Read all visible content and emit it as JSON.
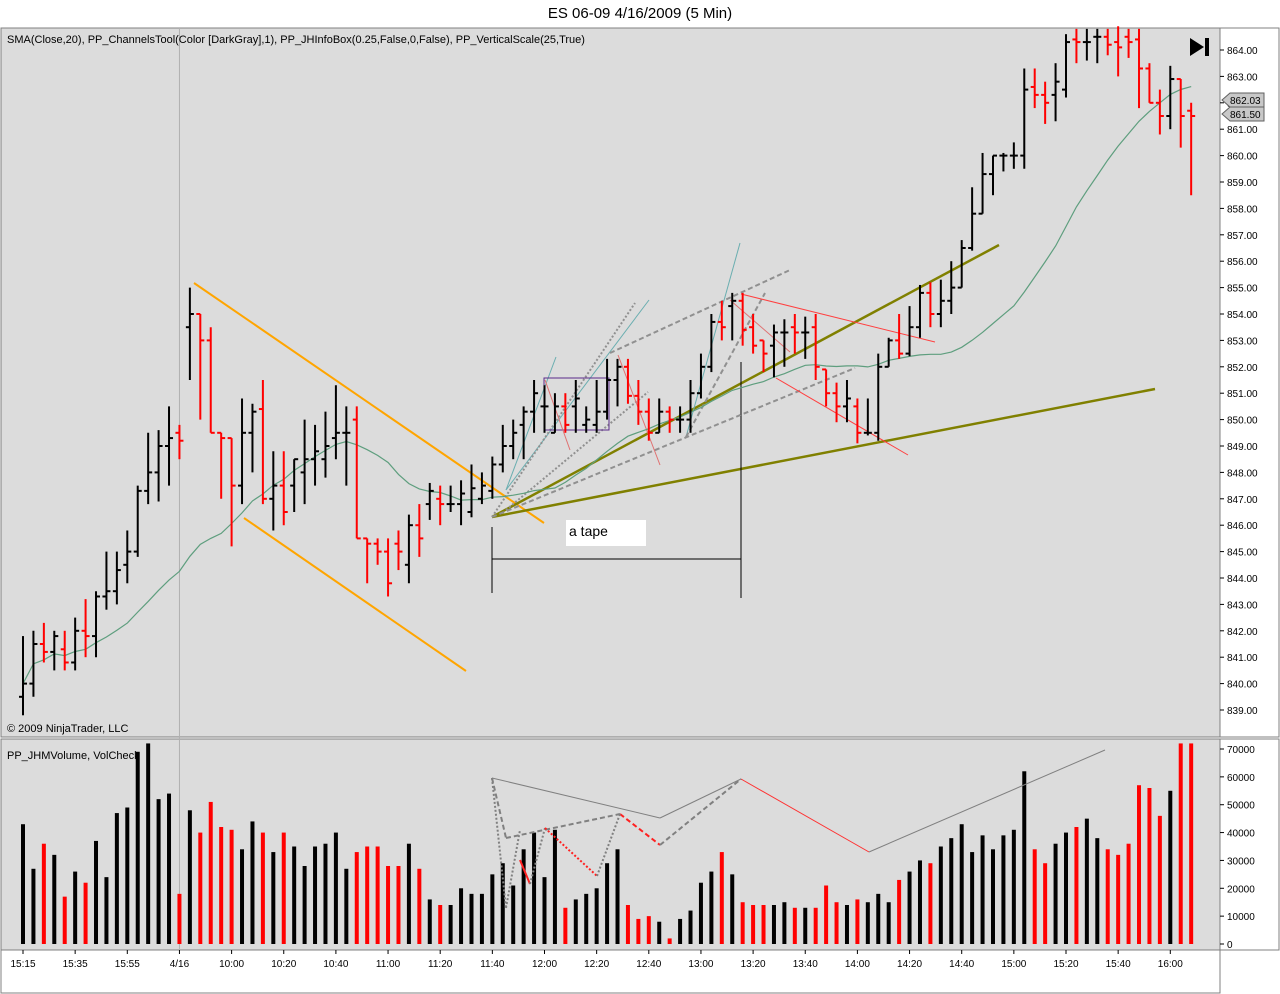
{
  "title": "ES 06-09  4/16/2009 (5 Min)",
  "price_panel": {
    "indicator_label": "SMA(Close,20), PP_ChannelsTool(Color [DarkGray],1), PP_JHInfoBox(0.25,False,0,False), PP_VerticalScale(25,True)",
    "copyright": "© 2009 NinjaTrader, LLC",
    "annotation": "a tape",
    "price_markers": [
      "862.03",
      "861.50"
    ]
  },
  "volume_panel": {
    "indicator_label": "PP_JHMVolume, VolCheck"
  },
  "colors": {
    "up": "#000000",
    "down": "#ff0000",
    "sma": "#5e9e7e",
    "channel_orange": "#ffa500",
    "olive": "#808000"
  },
  "chart_data": {
    "type": "bar",
    "subtype": "ohlc",
    "x_tick_labels": [
      "15:15",
      "15:35",
      "15:55",
      "4/16",
      "10:00",
      "10:20",
      "10:40",
      "11:00",
      "11:20",
      "11:40",
      "12:00",
      "12:20",
      "12:40",
      "13:00",
      "13:20",
      "13:40",
      "14:00",
      "14:20",
      "14:40",
      "15:00",
      "15:20",
      "15:40",
      "16:00"
    ],
    "price_ticks": [
      "839.00",
      "840.00",
      "841.00",
      "842.00",
      "843.00",
      "844.00",
      "845.00",
      "846.00",
      "847.00",
      "848.00",
      "849.00",
      "850.00",
      "851.00",
      "852.00",
      "853.00",
      "854.00",
      "855.00",
      "856.00",
      "857.00",
      "858.00",
      "859.00",
      "860.00",
      "861.00",
      "862.00",
      "863.00",
      "864.00"
    ],
    "volume_ticks": [
      "0",
      "10000",
      "20000",
      "30000",
      "40000",
      "50000",
      "60000",
      "70000"
    ],
    "ylim_price": [
      838.25,
      864.8
    ],
    "ylim_volume": [
      0,
      72000
    ],
    "bars": [
      {
        "o": 839.5,
        "h": 841.8,
        "l": 838.8,
        "c": 840.0,
        "v": 43000
      },
      {
        "o": 840.0,
        "h": 842.0,
        "l": 839.5,
        "c": 841.5,
        "v": 27000
      },
      {
        "o": 841.5,
        "h": 842.3,
        "l": 840.8,
        "c": 841.2,
        "v": 36000
      },
      {
        "o": 841.2,
        "h": 842.0,
        "l": 840.5,
        "c": 841.8,
        "v": 32000
      },
      {
        "o": 841.3,
        "h": 842.0,
        "l": 840.5,
        "c": 840.8,
        "v": 17000
      },
      {
        "o": 840.8,
        "h": 842.5,
        "l": 840.5,
        "c": 842.0,
        "v": 26000
      },
      {
        "o": 842.0,
        "h": 843.2,
        "l": 841.0,
        "c": 841.8,
        "v": 22000
      },
      {
        "o": 841.8,
        "h": 843.5,
        "l": 841.0,
        "c": 843.3,
        "v": 37000
      },
      {
        "o": 843.3,
        "h": 845.0,
        "l": 842.8,
        "c": 843.5,
        "v": 24000
      },
      {
        "o": 843.5,
        "h": 845.0,
        "l": 843.0,
        "c": 844.3,
        "v": 47000
      },
      {
        "o": 844.5,
        "h": 845.8,
        "l": 843.8,
        "c": 845.0,
        "v": 49000
      },
      {
        "o": 845.0,
        "h": 847.5,
        "l": 844.8,
        "c": 847.3,
        "v": 69000
      },
      {
        "o": 847.3,
        "h": 849.5,
        "l": 846.8,
        "c": 848.0,
        "v": 72000
      },
      {
        "o": 848.0,
        "h": 849.6,
        "l": 846.9,
        "c": 849.0,
        "v": 52000
      },
      {
        "o": 849.0,
        "h": 850.5,
        "l": 847.5,
        "c": 849.3,
        "v": 54000
      },
      {
        "o": 849.5,
        "h": 849.8,
        "l": 848.5,
        "c": 849.2,
        "v": 18000
      },
      {
        "o": 853.5,
        "h": 855.0,
        "l": 851.5,
        "c": 854.0,
        "v": 48000
      },
      {
        "o": 854.0,
        "h": 853.0,
        "l": 850.0,
        "c": 853.0,
        "v": 40000
      },
      {
        "o": 853.0,
        "h": 853.5,
        "l": 849.5,
        "c": 849.5,
        "v": 51000
      },
      {
        "o": 849.5,
        "h": 849.5,
        "l": 847.0,
        "c": 849.3,
        "v": 42000
      },
      {
        "o": 849.3,
        "h": 849.3,
        "l": 845.2,
        "c": 847.5,
        "v": 41000
      },
      {
        "o": 847.5,
        "h": 850.8,
        "l": 846.8,
        "c": 849.5,
        "v": 34000
      },
      {
        "o": 849.5,
        "h": 850.6,
        "l": 848.0,
        "c": 850.3,
        "v": 44000
      },
      {
        "o": 850.4,
        "h": 851.5,
        "l": 846.8,
        "c": 847.0,
        "v": 40000
      },
      {
        "o": 847.0,
        "h": 848.8,
        "l": 845.8,
        "c": 847.5,
        "v": 33000
      },
      {
        "o": 847.5,
        "h": 848.8,
        "l": 846.0,
        "c": 846.5,
        "v": 40000
      },
      {
        "o": 847.5,
        "h": 848.5,
        "l": 846.5,
        "c": 848.5,
        "v": 35000
      },
      {
        "o": 848.0,
        "h": 850.0,
        "l": 846.8,
        "c": 848.5,
        "v": 28000
      },
      {
        "o": 848.5,
        "h": 849.8,
        "l": 847.5,
        "c": 848.8,
        "v": 35000
      },
      {
        "o": 848.5,
        "h": 850.3,
        "l": 847.8,
        "c": 849.0,
        "v": 36000
      },
      {
        "o": 849.3,
        "h": 851.3,
        "l": 848.5,
        "c": 849.5,
        "v": 40000
      },
      {
        "o": 849.5,
        "h": 850.5,
        "l": 847.5,
        "c": 849.5,
        "v": 27000
      },
      {
        "o": 850.0,
        "h": 850.5,
        "l": 845.8,
        "c": 845.5,
        "v": 33000
      },
      {
        "o": 845.5,
        "h": 845.5,
        "l": 843.8,
        "c": 845.3,
        "v": 35000
      },
      {
        "o": 845.3,
        "h": 845.5,
        "l": 844.5,
        "c": 845.0,
        "v": 35000
      },
      {
        "o": 845.0,
        "h": 845.5,
        "l": 843.3,
        "c": 843.8,
        "v": 28000
      },
      {
        "o": 845.3,
        "h": 845.8,
        "l": 844.3,
        "c": 845.0,
        "v": 28000
      },
      {
        "o": 844.5,
        "h": 846.4,
        "l": 843.8,
        "c": 846.0,
        "v": 36000
      },
      {
        "o": 846.0,
        "h": 846.8,
        "l": 844.8,
        "c": 845.5,
        "v": 27000
      },
      {
        "o": 846.8,
        "h": 847.6,
        "l": 846.2,
        "c": 847.3,
        "v": 16000
      },
      {
        "o": 847.0,
        "h": 847.5,
        "l": 846.0,
        "c": 846.8,
        "v": 14000
      },
      {
        "o": 846.8,
        "h": 847.5,
        "l": 846.5,
        "c": 846.8,
        "v": 14000
      },
      {
        "o": 846.8,
        "h": 847.7,
        "l": 846.0,
        "c": 847.2,
        "v": 20000
      },
      {
        "o": 846.5,
        "h": 848.3,
        "l": 846.3,
        "c": 847.4,
        "v": 18000
      },
      {
        "o": 847.0,
        "h": 848.0,
        "l": 846.8,
        "c": 847.5,
        "v": 18000
      },
      {
        "o": 847.3,
        "h": 848.6,
        "l": 847.0,
        "c": 848.3,
        "v": 25000
      },
      {
        "o": 848.3,
        "h": 849.8,
        "l": 848.0,
        "c": 849.0,
        "v": 29000
      },
      {
        "o": 849.0,
        "h": 850.0,
        "l": 848.5,
        "c": 849.5,
        "v": 21000
      },
      {
        "o": 849.8,
        "h": 850.5,
        "l": 848.5,
        "c": 850.3,
        "v": 34000
      },
      {
        "o": 850.3,
        "h": 851.5,
        "l": 849.5,
        "c": 851.0,
        "v": 40000
      },
      {
        "o": 850.5,
        "h": 851.3,
        "l": 849.5,
        "c": 850.5,
        "v": 24000
      },
      {
        "o": 849.5,
        "h": 851.0,
        "l": 849.5,
        "c": 850.5,
        "v": 41000
      },
      {
        "o": 850.5,
        "h": 851.0,
        "l": 849.5,
        "c": 849.8,
        "v": 13000
      },
      {
        "o": 850.5,
        "h": 851.5,
        "l": 849.5,
        "c": 850.8,
        "v": 16000
      },
      {
        "o": 849.8,
        "h": 850.5,
        "l": 849.5,
        "c": 850.0,
        "v": 18000
      },
      {
        "o": 849.8,
        "h": 851.5,
        "l": 849.5,
        "c": 850.3,
        "v": 20000
      },
      {
        "o": 850.3,
        "h": 852.3,
        "l": 850.0,
        "c": 851.5,
        "v": 29000
      },
      {
        "o": 851.5,
        "h": 852.3,
        "l": 850.5,
        "c": 852.0,
        "v": 34000
      },
      {
        "o": 852.0,
        "h": 852.3,
        "l": 850.6,
        "c": 850.9,
        "v": 14000
      },
      {
        "o": 850.9,
        "h": 851.5,
        "l": 849.8,
        "c": 850.3,
        "v": 9000
      },
      {
        "o": 850.3,
        "h": 850.8,
        "l": 849.2,
        "c": 849.5,
        "v": 10000
      },
      {
        "o": 849.5,
        "h": 850.8,
        "l": 849.5,
        "c": 850.3,
        "v": 8000
      },
      {
        "o": 850.3,
        "h": 850.5,
        "l": 849.5,
        "c": 850.0,
        "v": 2000
      },
      {
        "o": 850.0,
        "h": 850.5,
        "l": 849.5,
        "c": 850.0,
        "v": 9000
      },
      {
        "o": 850.0,
        "h": 851.5,
        "l": 849.5,
        "c": 851.0,
        "v": 12000
      },
      {
        "o": 851.0,
        "h": 852.5,
        "l": 850.8,
        "c": 852.0,
        "v": 22000
      },
      {
        "o": 852.0,
        "h": 854.0,
        "l": 851.8,
        "c": 853.7,
        "v": 26000
      },
      {
        "o": 853.7,
        "h": 854.5,
        "l": 853.0,
        "c": 853.5,
        "v": 33000
      },
      {
        "o": 854.3,
        "h": 854.8,
        "l": 853.0,
        "c": 854.5,
        "v": 25000
      },
      {
        "o": 854.5,
        "h": 854.8,
        "l": 852.8,
        "c": 853.4,
        "v": 15000
      },
      {
        "o": 853.5,
        "h": 854.0,
        "l": 852.5,
        "c": 852.8,
        "v": 14000
      },
      {
        "o": 853.0,
        "h": 853.0,
        "l": 851.8,
        "c": 852.5,
        "v": 14000
      },
      {
        "o": 852.8,
        "h": 853.6,
        "l": 851.6,
        "c": 853.3,
        "v": 14000
      },
      {
        "o": 853.3,
        "h": 853.8,
        "l": 852.0,
        "c": 853.3,
        "v": 15000
      },
      {
        "o": 853.5,
        "h": 854.0,
        "l": 852.5,
        "c": 853.3,
        "v": 13000
      },
      {
        "o": 853.3,
        "h": 853.9,
        "l": 852.3,
        "c": 853.3,
        "v": 13000
      },
      {
        "o": 853.5,
        "h": 854.0,
        "l": 851.5,
        "c": 852.0,
        "v": 13000
      },
      {
        "o": 851.9,
        "h": 851.8,
        "l": 850.5,
        "c": 851.0,
        "v": 21000
      },
      {
        "o": 851.0,
        "h": 851.4,
        "l": 849.9,
        "c": 850.5,
        "v": 15000
      },
      {
        "o": 850.5,
        "h": 851.5,
        "l": 849.9,
        "c": 850.8,
        "v": 14000
      },
      {
        "o": 850.5,
        "h": 850.8,
        "l": 849.1,
        "c": 849.5,
        "v": 16000
      },
      {
        "o": 849.5,
        "h": 850.8,
        "l": 849.4,
        "c": 849.5,
        "v": 15000
      },
      {
        "o": 849.5,
        "h": 852.5,
        "l": 849.2,
        "c": 852.0,
        "v": 18000
      },
      {
        "o": 852.0,
        "h": 853.1,
        "l": 852.0,
        "c": 853.0,
        "v": 15000
      },
      {
        "o": 853.0,
        "h": 854.0,
        "l": 852.3,
        "c": 852.5,
        "v": 23000
      },
      {
        "o": 852.5,
        "h": 854.3,
        "l": 852.4,
        "c": 853.5,
        "v": 26000
      },
      {
        "o": 853.5,
        "h": 855.1,
        "l": 853.1,
        "c": 854.8,
        "v": 30000
      },
      {
        "o": 854.8,
        "h": 855.2,
        "l": 853.5,
        "c": 854.0,
        "v": 29000
      },
      {
        "o": 854.0,
        "h": 855.3,
        "l": 853.5,
        "c": 854.5,
        "v": 35000
      },
      {
        "o": 854.5,
        "h": 856.0,
        "l": 854.0,
        "c": 855.0,
        "v": 38000
      },
      {
        "o": 855.0,
        "h": 856.8,
        "l": 855.5,
        "c": 856.5,
        "v": 43000
      },
      {
        "o": 856.5,
        "h": 858.8,
        "l": 856.4,
        "c": 857.8,
        "v": 33000
      },
      {
        "o": 857.8,
        "h": 860.1,
        "l": 857.9,
        "c": 859.3,
        "v": 39000
      },
      {
        "o": 859.3,
        "h": 860.0,
        "l": 858.5,
        "c": 860.0,
        "v": 34000
      },
      {
        "o": 860.0,
        "h": 860.1,
        "l": 859.4,
        "c": 860.0,
        "v": 39000
      },
      {
        "o": 860.0,
        "h": 860.5,
        "l": 859.5,
        "c": 860.0,
        "v": 41000
      },
      {
        "o": 860.0,
        "h": 863.3,
        "l": 859.5,
        "c": 862.5,
        "v": 62000
      },
      {
        "o": 862.6,
        "h": 863.3,
        "l": 861.8,
        "c": 862.3,
        "v": 34000
      },
      {
        "o": 862.3,
        "h": 862.8,
        "l": 861.2,
        "c": 862.0,
        "v": 29000
      },
      {
        "o": 862.3,
        "h": 863.5,
        "l": 861.3,
        "c": 862.8,
        "v": 36000
      },
      {
        "o": 862.5,
        "h": 864.6,
        "l": 862.2,
        "c": 864.3,
        "v": 40000
      },
      {
        "o": 864.4,
        "h": 864.8,
        "l": 863.5,
        "c": 864.3,
        "v": 42000
      },
      {
        "o": 864.3,
        "h": 864.8,
        "l": 863.6,
        "c": 864.3,
        "v": 45000
      },
      {
        "o": 864.5,
        "h": 864.8,
        "l": 863.5,
        "c": 864.5,
        "v": 38000
      },
      {
        "o": 864.5,
        "h": 864.8,
        "l": 863.8,
        "c": 864.2,
        "v": 34000
      },
      {
        "o": 864.3,
        "h": 864.9,
        "l": 863.0,
        "c": 864.1,
        "v": 32000
      },
      {
        "o": 864.5,
        "h": 864.8,
        "l": 863.7,
        "c": 864.3,
        "v": 36000
      },
      {
        "o": 864.4,
        "h": 864.8,
        "l": 861.8,
        "c": 863.3,
        "v": 57000
      },
      {
        "o": 863.3,
        "h": 863.5,
        "l": 862.0,
        "c": 862.0,
        "v": 56000
      },
      {
        "o": 862.0,
        "h": 862.5,
        "l": 860.8,
        "c": 861.5,
        "v": 46000
      },
      {
        "o": 861.5,
        "h": 863.4,
        "l": 861.0,
        "c": 862.9,
        "v": 55000
      },
      {
        "o": 862.9,
        "h": 862.9,
        "l": 860.3,
        "c": 861.5,
        "v": 72000
      },
      {
        "o": 861.7,
        "h": 862.0,
        "l": 858.5,
        "c": 861.5,
        "v": 72000
      }
    ]
  }
}
